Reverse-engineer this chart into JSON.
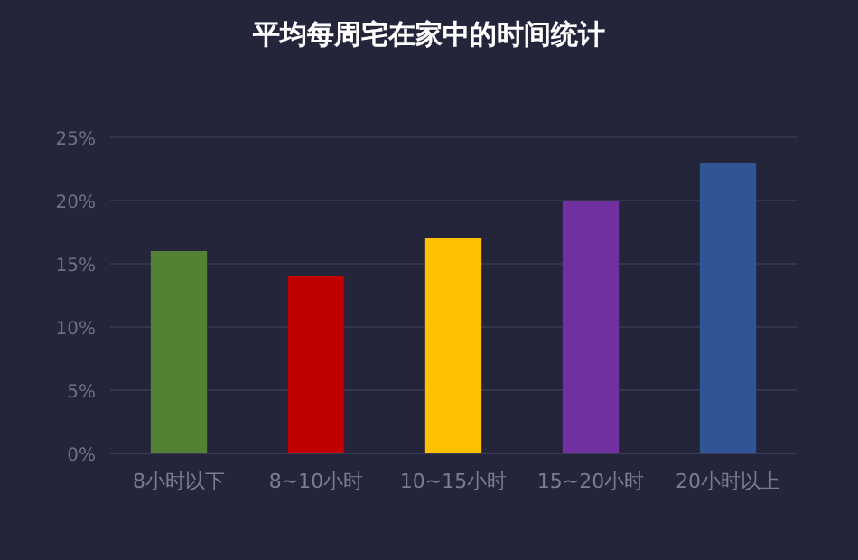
{
  "chart_data": {
    "type": "bar",
    "title": "平均每周宅在家中的时间统计",
    "categories": [
      "8小时以下",
      "8~10小时",
      "10~15小时",
      "15~20小时",
      "20小时以上"
    ],
    "values": [
      16,
      14,
      17,
      20,
      23
    ],
    "colors": [
      "#548235",
      "#c00000",
      "#ffc000",
      "#7030a0",
      "#2f5597"
    ],
    "ylim": [
      0,
      25
    ],
    "yticks": [
      {
        "value": 0,
        "label": "0%"
      },
      {
        "value": 5,
        "label": "5%"
      },
      {
        "value": 10,
        "label": "10%"
      },
      {
        "value": 15,
        "label": "15%"
      },
      {
        "value": 20,
        "label": "20%"
      },
      {
        "value": 25,
        "label": "25%"
      }
    ],
    "grid": "y"
  }
}
